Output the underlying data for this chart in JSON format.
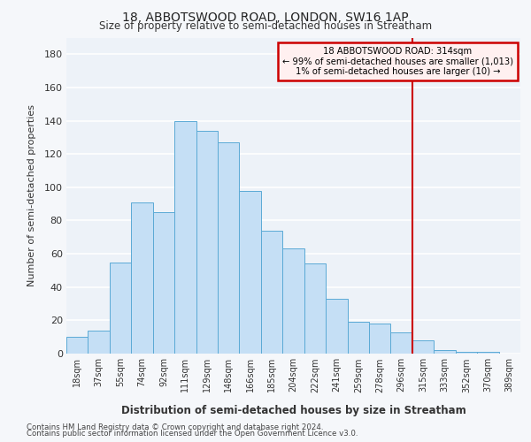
{
  "title": "18, ABBOTSWOOD ROAD, LONDON, SW16 1AP",
  "subtitle": "Size of property relative to semi-detached houses in Streatham",
  "xlabel": "Distribution of semi-detached houses by size in Streatham",
  "ylabel": "Number of semi-detached properties",
  "footer_line1": "Contains HM Land Registry data © Crown copyright and database right 2024.",
  "footer_line2": "Contains public sector information licensed under the Open Government Licence v3.0.",
  "annotation_title": "18 ABBOTSWOOD ROAD: 314sqm",
  "annotation_line1": "← 99% of semi-detached houses are smaller (1,013)",
  "annotation_line2": "1% of semi-detached houses are larger (10) →",
  "bar_labels": [
    "18sqm",
    "37sqm",
    "55sqm",
    "74sqm",
    "92sqm",
    "111sqm",
    "129sqm",
    "148sqm",
    "166sqm",
    "185sqm",
    "204sqm",
    "222sqm",
    "241sqm",
    "259sqm",
    "278sqm",
    "296sqm",
    "315sqm",
    "333sqm",
    "352sqm",
    "370sqm",
    "389sqm"
  ],
  "bar_values": [
    10,
    14,
    55,
    91,
    85,
    140,
    134,
    127,
    98,
    74,
    63,
    54,
    33,
    19,
    18,
    13,
    8,
    2,
    1,
    1,
    0
  ],
  "bar_color": "#c5dff5",
  "bar_edge_color": "#5baad5",
  "marker_color": "#cc0000",
  "marker_index": 16,
  "ylim": [
    0,
    190
  ],
  "yticks": [
    0,
    20,
    40,
    60,
    80,
    100,
    120,
    140,
    160,
    180
  ],
  "background_color": "#f5f7fa",
  "plot_background": "#edf2f8",
  "grid_color": "#d8e4f0",
  "annotation_box_facecolor": "#fff0f0",
  "annotation_border_color": "#cc0000"
}
